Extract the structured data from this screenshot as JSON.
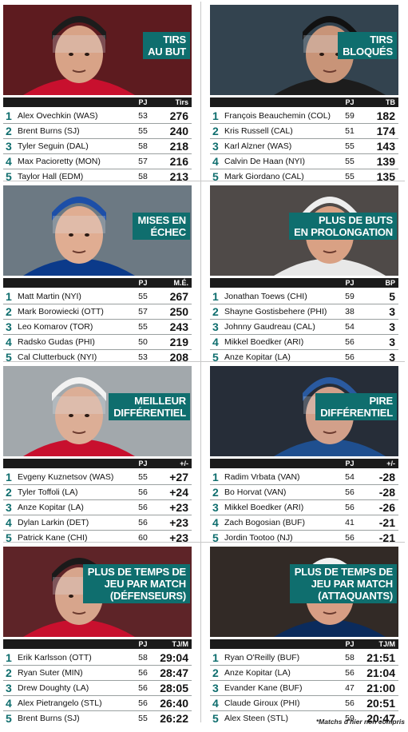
{
  "panels": [
    {
      "title_lines": [
        "TIRS",
        "AU BUT"
      ],
      "col_gp": "PJ",
      "col_val": "Tirs",
      "photo_colors": {
        "bg": "#6a1f24",
        "jersey": "#c8102e",
        "skin": "#d8a387",
        "helmet": "#1c1c1c"
      },
      "rows": [
        {
          "rank": "1",
          "name": "Alex Ovechkin (WAS)",
          "gp": "53",
          "val": "276"
        },
        {
          "rank": "2",
          "name": "Brent Burns (SJ)",
          "gp": "55",
          "val": "240"
        },
        {
          "rank": "3",
          "name": "Tyler Seguin (DAL)",
          "gp": "58",
          "val": "218"
        },
        {
          "rank": "4",
          "name": "Max Pacioretty (MON)",
          "gp": "57",
          "val": "216"
        },
        {
          "rank": "5",
          "name": "Taylor Hall (EDM)",
          "gp": "58",
          "val": "213"
        }
      ]
    },
    {
      "title_lines": [
        "TIRS",
        "BLOQUÉS"
      ],
      "col_gp": "PJ",
      "col_val": "TB",
      "photo_colors": {
        "bg": "#3b4d5a",
        "jersey": "#1c1c1c",
        "skin": "#c89478",
        "helmet": "#111111"
      },
      "rows": [
        {
          "rank": "1",
          "name": "François Beauchemin (COL)",
          "gp": "59",
          "val": "182"
        },
        {
          "rank": "2",
          "name": "Kris Russell (CAL)",
          "gp": "51",
          "val": "174"
        },
        {
          "rank": "3",
          "name": "Karl Alzner (WAS)",
          "gp": "55",
          "val": "143"
        },
        {
          "rank": "4",
          "name": "Calvin De Haan (NYI)",
          "gp": "55",
          "val": "139"
        },
        {
          "rank": "5",
          "name": "Mark Giordano (CAL)",
          "gp": "55",
          "val": "135"
        }
      ]
    },
    {
      "title_lines": [
        "MISES EN",
        "ÉCHEC"
      ],
      "col_gp": "PJ",
      "col_val": "M.É.",
      "photo_colors": {
        "bg": "#7c8a96",
        "jersey": "#0b3a8a",
        "skin": "#e0ad92",
        "helmet": "#1d4fa8"
      },
      "rows": [
        {
          "rank": "1",
          "name": "Matt Martin (NYI)",
          "gp": "55",
          "val": "267"
        },
        {
          "rank": "2",
          "name": "Mark Borowiecki (OTT)",
          "gp": "57",
          "val": "250"
        },
        {
          "rank": "3",
          "name": "Leo Komarov (TOR)",
          "gp": "55",
          "val": "243"
        },
        {
          "rank": "4",
          "name": "Radsko Gudas (PHI)",
          "gp": "50",
          "val": "219"
        },
        {
          "rank": "5",
          "name": "Cal Clutterbuck (NYI)",
          "gp": "53",
          "val": "208"
        }
      ]
    },
    {
      "title_lines": [
        "PLUS DE BUTS",
        "EN PROLONGATION"
      ],
      "col_gp": "PJ",
      "col_val": "BP",
      "photo_colors": {
        "bg": "#5a5552",
        "jersey": "#e8e8e8",
        "skin": "#d9a184",
        "helmet": "#eeeeee"
      },
      "rows": [
        {
          "rank": "1",
          "name": "Jonathan Toews (CHI)",
          "gp": "59",
          "val": "5"
        },
        {
          "rank": "2",
          "name": "Shayne Gostisbehere (PHI)",
          "gp": "38",
          "val": "3"
        },
        {
          "rank": "3",
          "name": "Johnny Gaudreau (CAL)",
          "gp": "54",
          "val": "3"
        },
        {
          "rank": "4",
          "name": "Mikkel Boedker (ARI)",
          "gp": "56",
          "val": "3"
        },
        {
          "rank": "5",
          "name": "Anze Kopitar (LA)",
          "gp": "56",
          "val": "3"
        }
      ]
    },
    {
      "title_lines": [
        "MEILLEUR",
        "DIFFÉRENTIEL"
      ],
      "col_gp": "PJ",
      "col_val": "+/-",
      "photo_colors": {
        "bg": "#b9c0c4",
        "jersey": "#c8102e",
        "skin": "#dcae96",
        "helmet": "#f2f2f2"
      },
      "rows": [
        {
          "rank": "1",
          "name": "Evgeny Kuznetsov (WAS)",
          "gp": "55",
          "val": "+27"
        },
        {
          "rank": "2",
          "name": "Tyler Toffoli (LA)",
          "gp": "56",
          "val": "+24"
        },
        {
          "rank": "3",
          "name": "Anze Kopitar (LA)",
          "gp": "56",
          "val": "+23"
        },
        {
          "rank": "4",
          "name": "Dylan Larkin (DET)",
          "gp": "56",
          "val": "+23"
        },
        {
          "rank": "5",
          "name": "Patrick Kane (CHI)",
          "gp": "60",
          "val": "+23"
        }
      ]
    },
    {
      "title_lines": [
        "PIRE",
        "DIFFÉRENTIEL"
      ],
      "col_gp": "PJ",
      "col_val": "+/-",
      "photo_colors": {
        "bg": "#2c3440",
        "jersey": "#1f4f8f",
        "skin": "#d2a08a",
        "helmet": "#2a5aa0"
      },
      "rows": [
        {
          "rank": "1",
          "name": "Radim Vrbata (VAN)",
          "gp": "54",
          "val": "-28"
        },
        {
          "rank": "2",
          "name": "Bo Horvat (VAN)",
          "gp": "56",
          "val": "-28"
        },
        {
          "rank": "3",
          "name": "Mikkel Boedker (ARI)",
          "gp": "56",
          "val": "-26"
        },
        {
          "rank": "4",
          "name": "Zach Bogosian (BUF)",
          "gp": "41",
          "val": "-21"
        },
        {
          "rank": "5",
          "name": "Jordin Tootoo (NJ)",
          "gp": "56",
          "val": "-21"
        }
      ]
    },
    {
      "title_lines": [
        "PLUS DE TEMPS DE",
        "JEU PAR MATCH",
        "(DÉFENSEURS)"
      ],
      "col_gp": "PJ",
      "col_val": "TJ/M",
      "photo_colors": {
        "bg": "#6c2a2e",
        "jersey": "#c8102e",
        "skin": "#d7a58c",
        "helmet": "#1a1a1a"
      },
      "rows": [
        {
          "rank": "1",
          "name": "Erik Karlsson (OTT)",
          "gp": "58",
          "val": "29:04"
        },
        {
          "rank": "2",
          "name": "Ryan Suter (MIN)",
          "gp": "56",
          "val": "28:47"
        },
        {
          "rank": "3",
          "name": "Drew Doughty (LA)",
          "gp": "56",
          "val": "28:05"
        },
        {
          "rank": "4",
          "name": "Alex Pietrangelo (STL)",
          "gp": "56",
          "val": "26:40"
        },
        {
          "rank": "5",
          "name": "Brent Burns (SJ)",
          "gp": "55",
          "val": "26:22"
        }
      ]
    },
    {
      "title_lines": [
        "PLUS DE TEMPS DE",
        "JEU PAR MATCH",
        "(ATTAQUANTS)"
      ],
      "col_gp": "PJ",
      "col_val": "TJ/M",
      "photo_colors": {
        "bg": "#3a302c",
        "jersey": "#0b2b5c",
        "skin": "#d89e84",
        "helmet": "#f0f0f0"
      },
      "rows": [
        {
          "rank": "1",
          "name": "Ryan O'Reilly (BUF)",
          "gp": "58",
          "val": "21:51"
        },
        {
          "rank": "2",
          "name": "Anze Kopitar (LA)",
          "gp": "56",
          "val": "21:04"
        },
        {
          "rank": "3",
          "name": "Evander Kane (BUF)",
          "gp": "47",
          "val": "21:00"
        },
        {
          "rank": "4",
          "name": "Claude Giroux (PHI)",
          "gp": "56",
          "val": "20:51"
        },
        {
          "rank": "5",
          "name": "Alex Steen (STL)",
          "gp": "59",
          "val": "20:47"
        }
      ]
    }
  ],
  "footnote": "*Matchs d'hier non compris",
  "accent": "#0f6e6e"
}
